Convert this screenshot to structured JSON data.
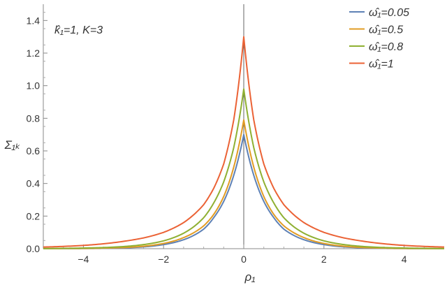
{
  "chart_data": {
    "type": "line",
    "annotation": "k̂₁=1, K=3",
    "xlabel": "ρ₁",
    "ylabel": "Σ₁ₖ",
    "xlim": [
      -5,
      5
    ],
    "ylim": [
      0,
      1.5
    ],
    "xticks": [
      -4,
      -2,
      0,
      2,
      4
    ],
    "xtick_labels": [
      "−4",
      "−2",
      "0",
      "2",
      "4"
    ],
    "yticks": [
      0,
      0.2,
      0.4,
      0.6,
      0.8,
      1.0,
      1.2,
      1.4
    ],
    "ytick_labels": [
      "0.0",
      "0.2",
      "0.4",
      "0.6",
      "0.8",
      "1.0",
      "1.2",
      "1.4"
    ],
    "legend_position": "top-right",
    "x": [
      -5,
      -4.5,
      -4,
      -3.5,
      -3,
      -2.5,
      -2,
      -1.5,
      -1,
      -0.75,
      -0.5,
      -0.25,
      0,
      0.25,
      0.5,
      0.75,
      1,
      1.5,
      2,
      2.5,
      3,
      3.5,
      4,
      4.5,
      5
    ],
    "series": [
      {
        "name": "ω̂₁=0.05",
        "color": "#5e81b5",
        "values": [
          0.0002,
          0.0004,
          0.0009,
          0.002,
          0.005,
          0.011,
          0.025,
          0.055,
          0.12,
          0.19,
          0.29,
          0.45,
          0.7,
          0.45,
          0.29,
          0.19,
          0.12,
          0.055,
          0.025,
          0.011,
          0.005,
          0.002,
          0.0009,
          0.0004,
          0.0002
        ]
      },
      {
        "name": "ω̂₁=0.5",
        "color": "#e19c24",
        "values": [
          0.0004,
          0.0008,
          0.0016,
          0.0035,
          0.007,
          0.015,
          0.032,
          0.068,
          0.14,
          0.21,
          0.32,
          0.5,
          0.79,
          0.5,
          0.32,
          0.21,
          0.14,
          0.068,
          0.032,
          0.015,
          0.007,
          0.0035,
          0.0016,
          0.0008,
          0.0004
        ]
      },
      {
        "name": "ω̂₁=0.8",
        "color": "#8fb032",
        "values": [
          0.001,
          0.002,
          0.004,
          0.007,
          0.013,
          0.025,
          0.048,
          0.095,
          0.19,
          0.28,
          0.41,
          0.62,
          0.98,
          0.62,
          0.41,
          0.28,
          0.19,
          0.095,
          0.048,
          0.025,
          0.013,
          0.007,
          0.004,
          0.002,
          0.001
        ]
      },
      {
        "name": "ω̂₁=1",
        "color": "#eb6235",
        "values": [
          0.01,
          0.014,
          0.02,
          0.03,
          0.045,
          0.066,
          0.1,
          0.16,
          0.27,
          0.37,
          0.52,
          0.79,
          1.3,
          0.79,
          0.52,
          0.37,
          0.27,
          0.16,
          0.1,
          0.066,
          0.045,
          0.03,
          0.02,
          0.014,
          0.01
        ]
      }
    ]
  }
}
